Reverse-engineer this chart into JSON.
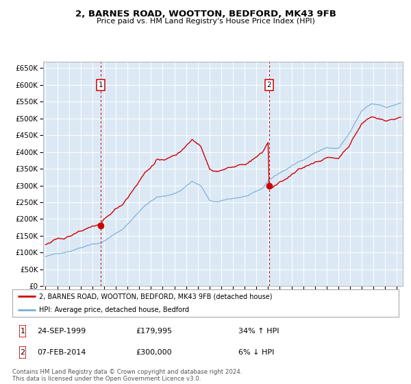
{
  "title": "2, BARNES ROAD, WOOTTON, BEDFORD, MK43 9FB",
  "subtitle": "Price paid vs. HM Land Registry's House Price Index (HPI)",
  "bg_color": "#dce9f5",
  "red_line_color": "#cc0000",
  "blue_line_color": "#7ab0d4",
  "sale1_date_label": "24-SEP-1999",
  "sale1_price": 179995,
  "sale1_hpi_pct": "34% ↑ HPI",
  "sale1_year": 1999.73,
  "sale2_date_label": "07-FEB-2014",
  "sale2_price": 300000,
  "sale2_hpi_pct": "6% ↓ HPI",
  "sale2_year": 2014.1,
  "legend_label1": "2, BARNES ROAD, WOOTTON, BEDFORD, MK43 9FB (detached house)",
  "legend_label2": "HPI: Average price, detached house, Bedford",
  "footer_text": "Contains HM Land Registry data © Crown copyright and database right 2024.\nThis data is licensed under the Open Government Licence v3.0.",
  "yticks": [
    0,
    50000,
    100000,
    150000,
    200000,
    250000,
    300000,
    350000,
    400000,
    450000,
    500000,
    550000,
    600000,
    650000
  ],
  "xmin": 1994.8,
  "xmax": 2025.5,
  "ymin": 0,
  "ymax": 670000
}
